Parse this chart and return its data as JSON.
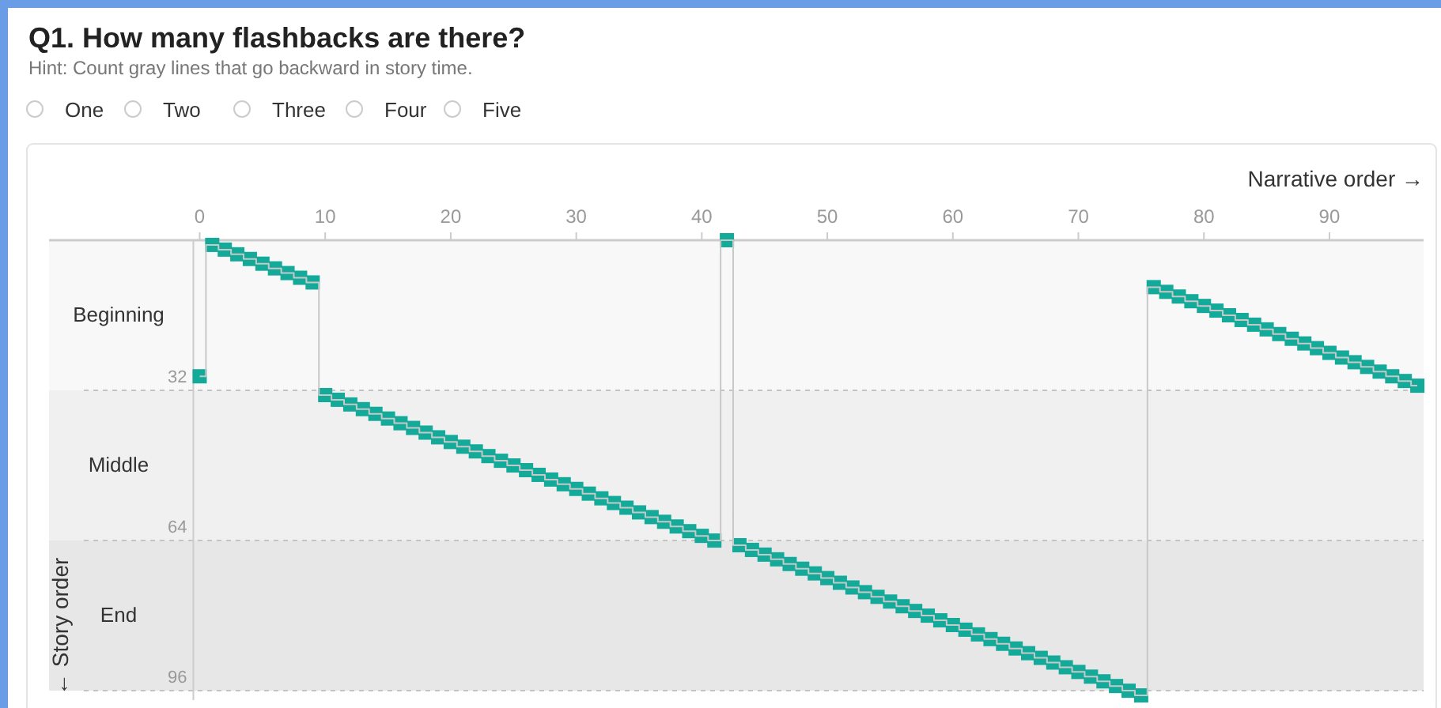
{
  "chart_data": {
    "type": "step",
    "title": "Q1. How many flashbacks are there?",
    "subtitle": "Hint: Count gray lines that go backward in story time.",
    "annotations": [
      "One",
      "Two",
      "Three",
      "Four",
      "Five"
    ],
    "xlabel": "Narrative order →",
    "ylabel": "← Story order",
    "x": [
      0,
      1,
      2,
      3,
      4,
      5,
      6,
      7,
      8,
      9,
      10,
      11,
      12,
      13,
      14,
      15,
      16,
      17,
      18,
      19,
      20,
      21,
      22,
      23,
      24,
      25,
      26,
      27,
      28,
      29,
      30,
      31,
      32,
      33,
      34,
      35,
      36,
      37,
      38,
      39,
      40,
      41,
      42,
      43,
      44,
      45,
      46,
      47,
      48,
      49,
      50,
      51,
      52,
      53,
      54,
      55,
      56,
      57,
      58,
      59,
      60,
      61,
      62,
      63,
      64,
      65,
      66,
      67,
      68,
      69,
      70,
      71,
      72,
      73,
      74,
      75,
      76,
      77,
      78,
      79,
      80,
      81,
      82,
      83,
      84,
      85,
      86,
      87,
      88,
      89,
      90,
      91,
      92,
      93,
      94,
      95,
      96,
      97
    ],
    "series": [
      {
        "type": "scatter",
        "color": "#14aa9a",
        "marker": "square",
        "values": [
          29,
          1,
          2,
          3,
          4,
          5,
          6,
          7,
          8,
          9,
          33,
          34,
          35,
          36,
          37,
          38,
          39,
          40,
          41,
          42,
          43,
          44,
          45,
          46,
          47,
          48,
          49,
          50,
          51,
          52,
          53,
          54,
          55,
          56,
          57,
          58,
          59,
          60,
          61,
          62,
          63,
          64,
          0,
          65,
          66,
          67,
          68,
          69,
          70,
          71,
          72,
          73,
          74,
          75,
          76,
          77,
          78,
          79,
          80,
          81,
          82,
          83,
          84,
          85,
          86,
          87,
          88,
          89,
          90,
          91,
          92,
          93,
          94,
          95,
          96,
          97,
          10,
          11,
          12,
          13,
          14,
          15,
          16,
          17,
          18,
          19,
          20,
          21,
          22,
          23,
          24,
          25,
          26,
          27,
          28,
          29,
          30,
          31
        ]
      },
      {
        "color": "#c8c8c8",
        "marker": "none",
        "values": [
          29,
          1,
          2,
          3,
          4,
          5,
          6,
          7,
          8,
          9,
          33,
          34,
          35,
          36,
          37,
          38,
          39,
          40,
          41,
          42,
          43,
          44,
          45,
          46,
          47,
          48,
          49,
          50,
          51,
          52,
          53,
          54,
          55,
          56,
          57,
          58,
          59,
          60,
          61,
          62,
          63,
          64,
          0,
          65,
          66,
          67,
          68,
          69,
          70,
          71,
          72,
          73,
          74,
          75,
          76,
          77,
          78,
          79,
          80,
          81,
          82,
          83,
          84,
          85,
          86,
          87,
          88,
          89,
          90,
          91,
          92,
          93,
          94,
          95,
          96,
          97,
          10,
          11,
          12,
          13,
          14,
          15,
          16,
          17,
          18,
          19,
          20,
          21,
          22,
          23,
          24,
          25,
          26,
          27,
          28,
          29,
          30,
          31
        ]
      }
    ],
    "xlim": [
      -12,
      97.5
    ],
    "xticks": [
      0,
      10,
      20,
      30,
      40,
      50,
      60,
      70,
      80,
      90
    ],
    "ylim": [
      98,
      0
    ],
    "yticks": [
      32,
      64,
      96
    ],
    "grid": "y",
    "bands": [
      {
        "axis": "y",
        "from": 0,
        "to": 32,
        "label": "Beginning",
        "color": "#f8f8f8"
      },
      {
        "axis": "y",
        "from": 32,
        "to": 64,
        "label": "Middle",
        "color": "#f0f0f0"
      },
      {
        "axis": "y",
        "from": 64,
        "to": 96,
        "label": "End",
        "color": "#e7e7e7"
      }
    ]
  }
}
